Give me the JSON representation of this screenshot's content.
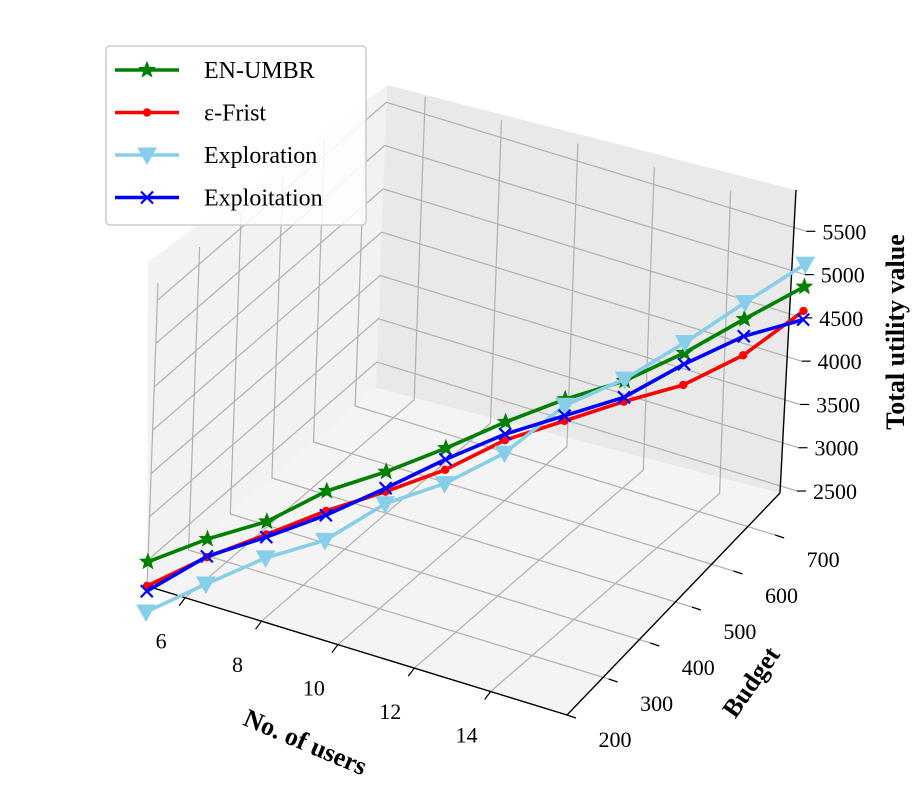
{
  "chart_data": {
    "type": "line",
    "projection": "3d",
    "xlabel": "No. of users",
    "ylabel": "Budget",
    "zlabel": "Total utility value",
    "x_ticks": [
      6,
      8,
      10,
      12,
      14
    ],
    "y_ticks": [
      200,
      300,
      400,
      500,
      600,
      700
    ],
    "z_ticks": [
      2500,
      3000,
      3500,
      4000,
      4500,
      5000,
      5500
    ],
    "xlim": [
      5,
      16
    ],
    "ylim": [
      200,
      750
    ],
    "zlim": [
      2200,
      5700
    ],
    "grid": true,
    "legend_position": "upper-left",
    "x": [
      5,
      6,
      7,
      8,
      9,
      10,
      11,
      12,
      13,
      14,
      15,
      16
    ],
    "y": [
      200,
      250,
      300,
      350,
      400,
      450,
      500,
      550,
      600,
      650,
      700,
      750
    ],
    "series": [
      {
        "name": "EN-UMBR",
        "color": "#008000",
        "marker": "star",
        "values": [
          2480,
          2670,
          2800,
          3080,
          3230,
          3430,
          3660,
          3850,
          3990,
          4240,
          4560,
          4860
        ]
      },
      {
        "name": "ε-Frist",
        "color": "#ff0000",
        "marker": "dot",
        "values": [
          2200,
          2460,
          2650,
          2850,
          3000,
          3180,
          3450,
          3600,
          3750,
          3870,
          4140,
          4580
        ]
      },
      {
        "name": "Exploration",
        "color": "#87ceeb",
        "marker": "triangle-down",
        "values": [
          1900,
          2150,
          2380,
          2510,
          2860,
          3020,
          3300,
          3780,
          4010,
          4360,
          4750,
          5120
        ]
      },
      {
        "name": "Exploitation",
        "color": "#0000ff",
        "marker": "x",
        "values": [
          2140,
          2470,
          2620,
          2800,
          3040,
          3300,
          3520,
          3660,
          3800,
          4110,
          4360,
          4480
        ]
      }
    ]
  }
}
